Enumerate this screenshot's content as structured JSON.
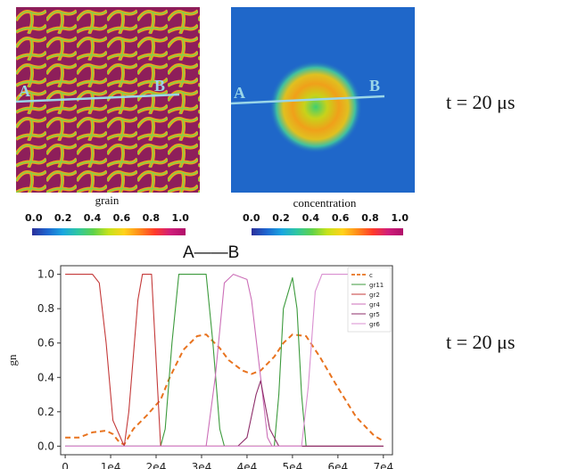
{
  "panels": {
    "grain": {
      "caption": "grain",
      "point_a": "A",
      "point_b": "B"
    },
    "concentration": {
      "caption": "concentration",
      "point_a": "A",
      "point_b": "B"
    }
  },
  "colorbar": {
    "ticks": [
      "0.0",
      "0.2",
      "0.4",
      "0.6",
      "0.8",
      "1.0"
    ]
  },
  "time_labels": {
    "top": "t = 20 μs",
    "bottom": "t = 20 μs"
  },
  "chart_data": {
    "type": "line",
    "title": "A——B",
    "xlabel": "",
    "ylabel": "gn",
    "xlim": [
      -1000,
      72000
    ],
    "ylim": [
      -0.05,
      1.05
    ],
    "xticks": [
      0,
      10000,
      20000,
      30000,
      40000,
      50000,
      60000,
      70000
    ],
    "xtick_labels": [
      "0",
      "1e4",
      "2e4",
      "3e4",
      "4e4",
      "5e4",
      "6e4",
      "7e4"
    ],
    "yticks": [
      0.0,
      0.2,
      0.4,
      0.6,
      0.8,
      1.0
    ],
    "ytick_labels": [
      "0.0",
      "0.2",
      "0.4",
      "0.6",
      "0.8",
      "1.0"
    ],
    "legend_position": "top-right",
    "series": [
      {
        "name": "c",
        "color": "#e8731f",
        "dashed": true,
        "x": [
          0,
          3000,
          6000,
          9000,
          10500,
          12000,
          13000,
          15000,
          18000,
          21000,
          23000,
          26000,
          29000,
          31000,
          34000,
          36000,
          39000,
          41000,
          43000,
          46000,
          48000,
          50000,
          53000,
          56000,
          60000,
          64000,
          68000,
          70000
        ],
        "y": [
          0.05,
          0.05,
          0.08,
          0.09,
          0.07,
          0.02,
          0.01,
          0.1,
          0.18,
          0.27,
          0.4,
          0.56,
          0.64,
          0.65,
          0.57,
          0.5,
          0.44,
          0.42,
          0.44,
          0.52,
          0.6,
          0.65,
          0.64,
          0.52,
          0.34,
          0.17,
          0.06,
          0.03
        ]
      },
      {
        "name": "gr11",
        "color": "#3c9a3c",
        "x": [
          0,
          21000,
          22000,
          23500,
          25000,
          31000,
          32500,
          34000,
          35000,
          46000,
          47000,
          48000,
          50000,
          51000,
          52000,
          53000,
          70000
        ],
        "y": [
          0,
          0,
          0.1,
          0.6,
          1.0,
          1.0,
          0.6,
          0.1,
          0,
          0,
          0.3,
          0.8,
          0.98,
          0.8,
          0.3,
          0,
          0
        ]
      },
      {
        "name": "gr2",
        "color": "#c43a3a",
        "x": [
          0,
          6000,
          7500,
          9000,
          10500,
          13000,
          14000,
          16000,
          17000,
          19000,
          21000,
          70000
        ],
        "y": [
          1.0,
          1.0,
          0.95,
          0.6,
          0.15,
          0,
          0.2,
          0.85,
          1.0,
          1.0,
          0,
          0
        ]
      },
      {
        "name": "gr4",
        "color": "#cc6fb8",
        "x": [
          0,
          31000,
          33000,
          35000,
          37000,
          40000,
          41000,
          43000,
          44500,
          45500,
          70000
        ],
        "y": [
          0,
          0,
          0.4,
          0.95,
          1.0,
          0.97,
          0.85,
          0.4,
          0.05,
          0,
          0
        ]
      },
      {
        "name": "gr5",
        "color": "#8e2e6a",
        "x": [
          0,
          38000,
          40000,
          42000,
          43000,
          45000,
          47000,
          70000
        ],
        "y": [
          0,
          0,
          0.05,
          0.3,
          0.38,
          0.1,
          0,
          0
        ]
      },
      {
        "name": "gr6",
        "color": "#d98fd0",
        "x": [
          0,
          52000,
          53500,
          55000,
          56500,
          70000
        ],
        "y": [
          0,
          0,
          0.35,
          0.9,
          1.0,
          1.0
        ]
      }
    ]
  }
}
